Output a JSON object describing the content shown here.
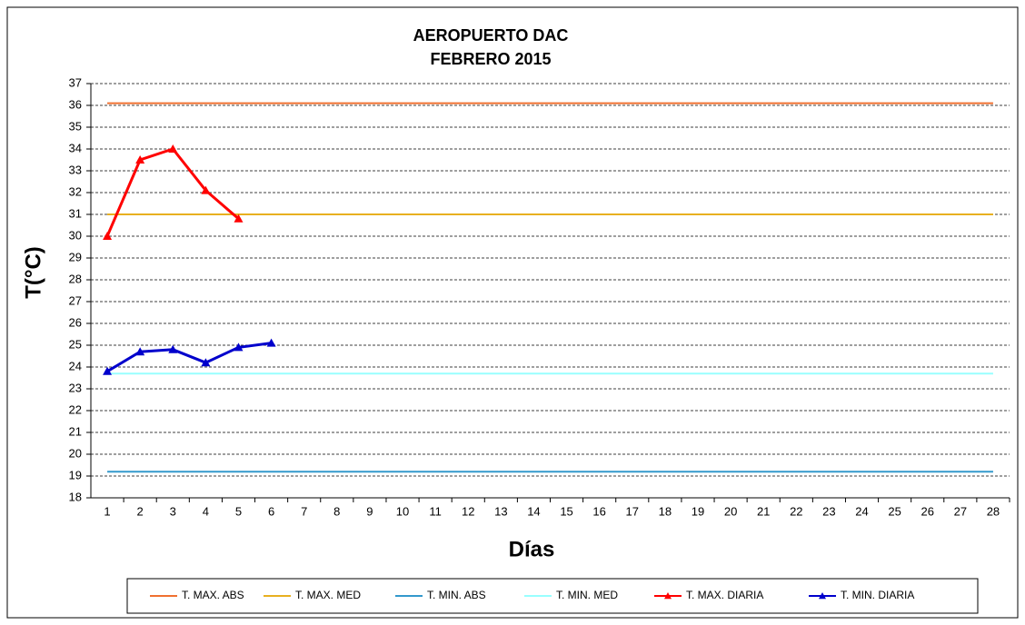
{
  "chart_data": {
    "type": "line",
    "title": "AEROPUERTO DAC",
    "subtitle": "FEBRERO 2015",
    "xlabel": "Días",
    "ylabel": "T(°C)",
    "categories": [
      1,
      2,
      3,
      4,
      5,
      6,
      7,
      8,
      9,
      10,
      11,
      12,
      13,
      14,
      15,
      16,
      17,
      18,
      19,
      20,
      21,
      22,
      23,
      24,
      25,
      26,
      27,
      28
    ],
    "ylim": [
      18,
      37
    ],
    "yticks": [
      18,
      19,
      20,
      21,
      22,
      23,
      24,
      25,
      26,
      27,
      28,
      29,
      30,
      31,
      32,
      33,
      34,
      35,
      36,
      37
    ],
    "grid": true,
    "legend": "bottom",
    "series": [
      {
        "name": "T. MAX. ABS",
        "color": "#f07030",
        "values": [
          36.1,
          36.1,
          36.1,
          36.1,
          36.1,
          36.1,
          36.1,
          36.1,
          36.1,
          36.1,
          36.1,
          36.1,
          36.1,
          36.1,
          36.1,
          36.1,
          36.1,
          36.1,
          36.1,
          36.1,
          36.1,
          36.1,
          36.1,
          36.1,
          36.1,
          36.1,
          36.1,
          36.1
        ]
      },
      {
        "name": "T. MAX. MED",
        "color": "#e8b020",
        "values": [
          31,
          31,
          31,
          31,
          31,
          31,
          31,
          31,
          31,
          31,
          31,
          31,
          31,
          31,
          31,
          31,
          31,
          31,
          31,
          31,
          31,
          31,
          31,
          31,
          31,
          31,
          31,
          31
        ]
      },
      {
        "name": "T. MIN. ABS",
        "color": "#3399cc",
        "values": [
          19.2,
          19.2,
          19.2,
          19.2,
          19.2,
          19.2,
          19.2,
          19.2,
          19.2,
          19.2,
          19.2,
          19.2,
          19.2,
          19.2,
          19.2,
          19.2,
          19.2,
          19.2,
          19.2,
          19.2,
          19.2,
          19.2,
          19.2,
          19.2,
          19.2,
          19.2,
          19.2,
          19.2
        ]
      },
      {
        "name": "T. MIN. MED",
        "color": "#99ffff",
        "values": [
          23.7,
          23.7,
          23.7,
          23.7,
          23.7,
          23.7,
          23.7,
          23.7,
          23.7,
          23.7,
          23.7,
          23.7,
          23.7,
          23.7,
          23.7,
          23.7,
          23.7,
          23.7,
          23.7,
          23.7,
          23.7,
          23.7,
          23.7,
          23.7,
          23.7,
          23.7,
          23.7,
          23.7
        ]
      },
      {
        "name": "T. MAX. DIARIA",
        "color": "#ff0000",
        "marker": "triangle",
        "values": [
          30,
          33.5,
          34,
          32.1,
          30.8,
          null,
          null,
          null,
          null,
          null,
          null,
          null,
          null,
          null,
          null,
          null,
          null,
          null,
          null,
          null,
          null,
          null,
          null,
          null,
          null,
          null,
          null,
          null
        ]
      },
      {
        "name": "T. MIN. DIARIA",
        "color": "#0000cc",
        "marker": "triangle",
        "values": [
          23.8,
          24.7,
          24.8,
          24.2,
          24.9,
          25.1,
          null,
          null,
          null,
          null,
          null,
          null,
          null,
          null,
          null,
          null,
          null,
          null,
          null,
          null,
          null,
          null,
          null,
          null,
          null,
          null,
          null,
          null
        ]
      }
    ]
  }
}
